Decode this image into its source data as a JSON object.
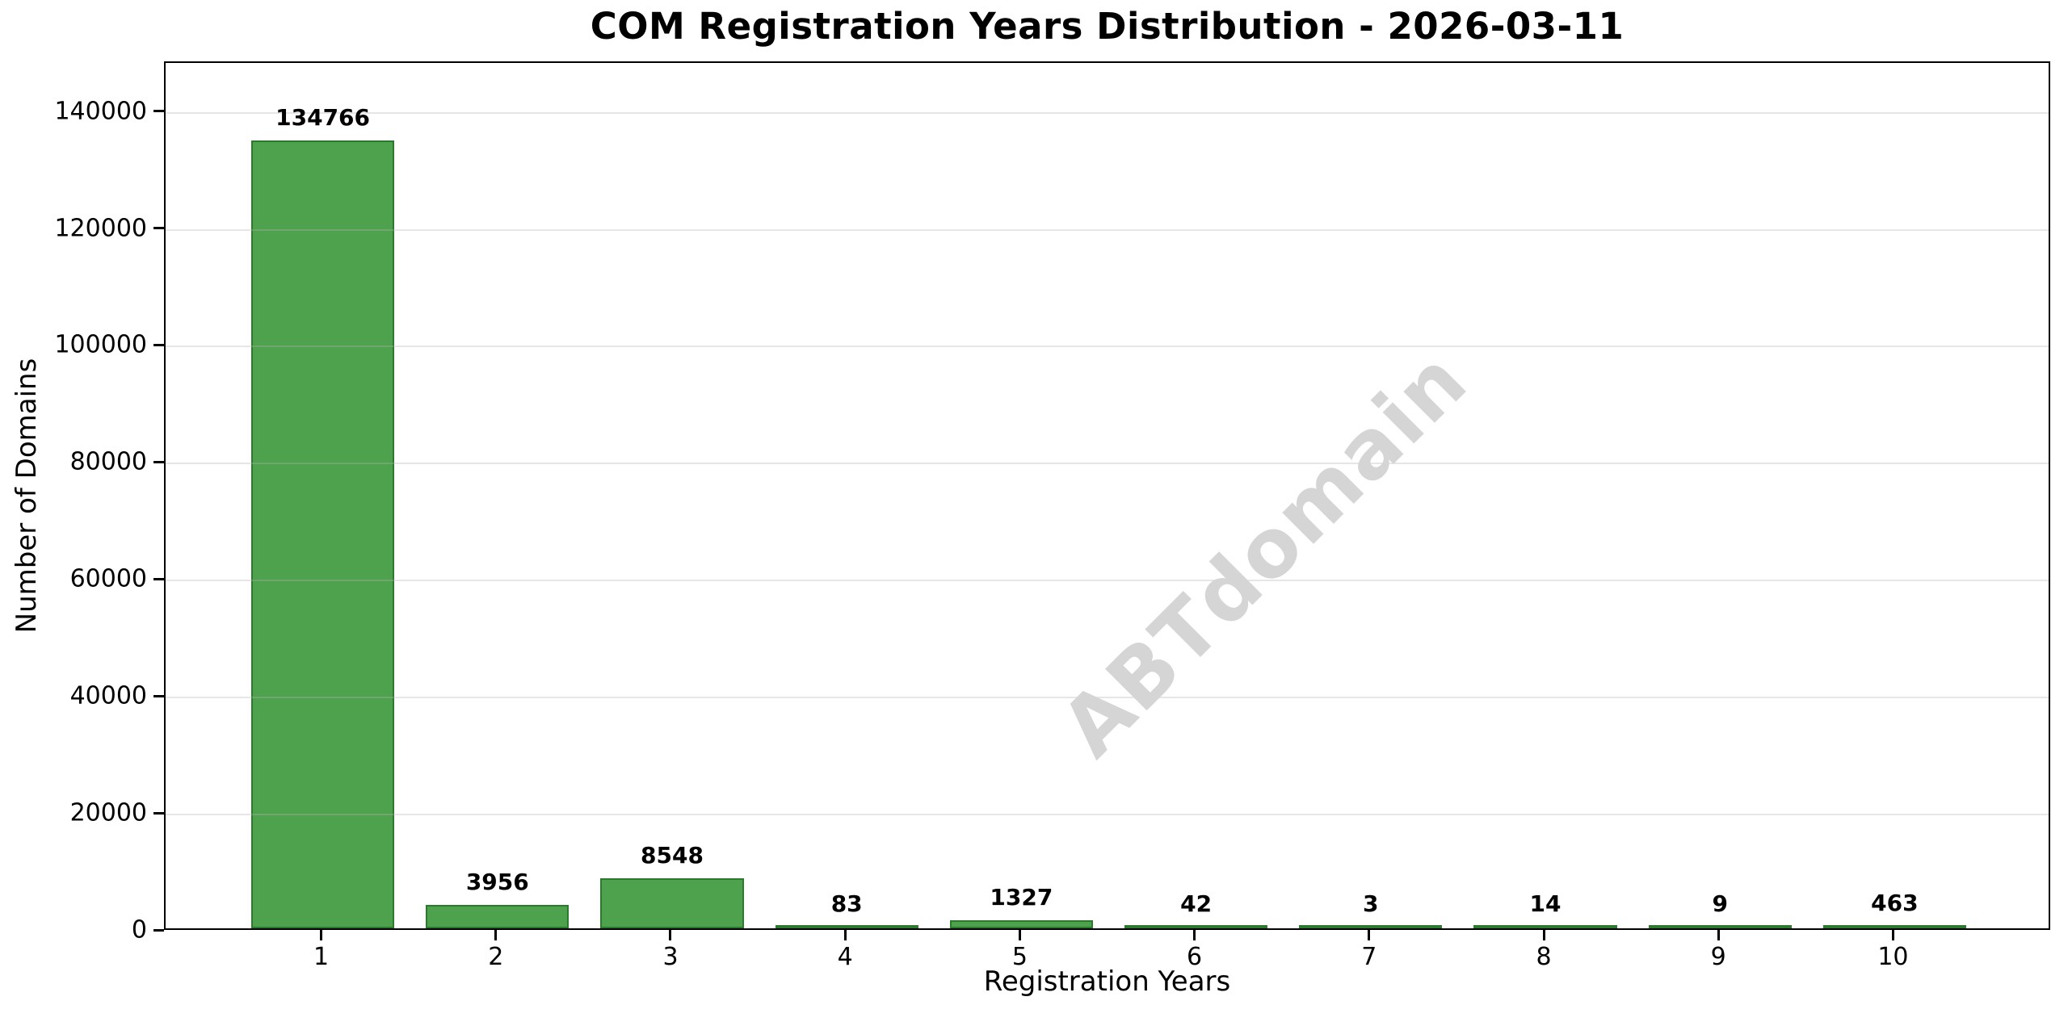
{
  "chart_data": {
    "type": "bar",
    "title": "COM Registration Years Distribution - 2026-03-11",
    "xlabel": "Registration Years",
    "ylabel": "Number of Domains",
    "categories": [
      "1",
      "2",
      "3",
      "4",
      "5",
      "6",
      "7",
      "8",
      "9",
      "10"
    ],
    "values": [
      134766,
      3956,
      8548,
      83,
      1327,
      42,
      3,
      14,
      9,
      463
    ],
    "bar_labels": [
      "134766",
      "3956",
      "8548",
      "83",
      "1327",
      "42",
      "3",
      "14",
      "9",
      "463"
    ],
    "yticks": [
      0,
      20000,
      40000,
      60000,
      80000,
      100000,
      120000,
      140000
    ],
    "ytick_labels": [
      "0",
      "20000",
      "40000",
      "60000",
      "80000",
      "100000",
      "120000",
      "140000"
    ],
    "ylim": [
      0,
      148500
    ],
    "grid": "horizontal",
    "legend": "none",
    "watermark": "ABTdomain",
    "colors": {
      "bar_fill": "#4ea24e",
      "bar_edge": "#2c7a2e",
      "grid": "#e9e9e9",
      "watermark": "#d5d5d5",
      "axis": "#000000",
      "text": "#000000",
      "background": "#ffffff"
    }
  }
}
